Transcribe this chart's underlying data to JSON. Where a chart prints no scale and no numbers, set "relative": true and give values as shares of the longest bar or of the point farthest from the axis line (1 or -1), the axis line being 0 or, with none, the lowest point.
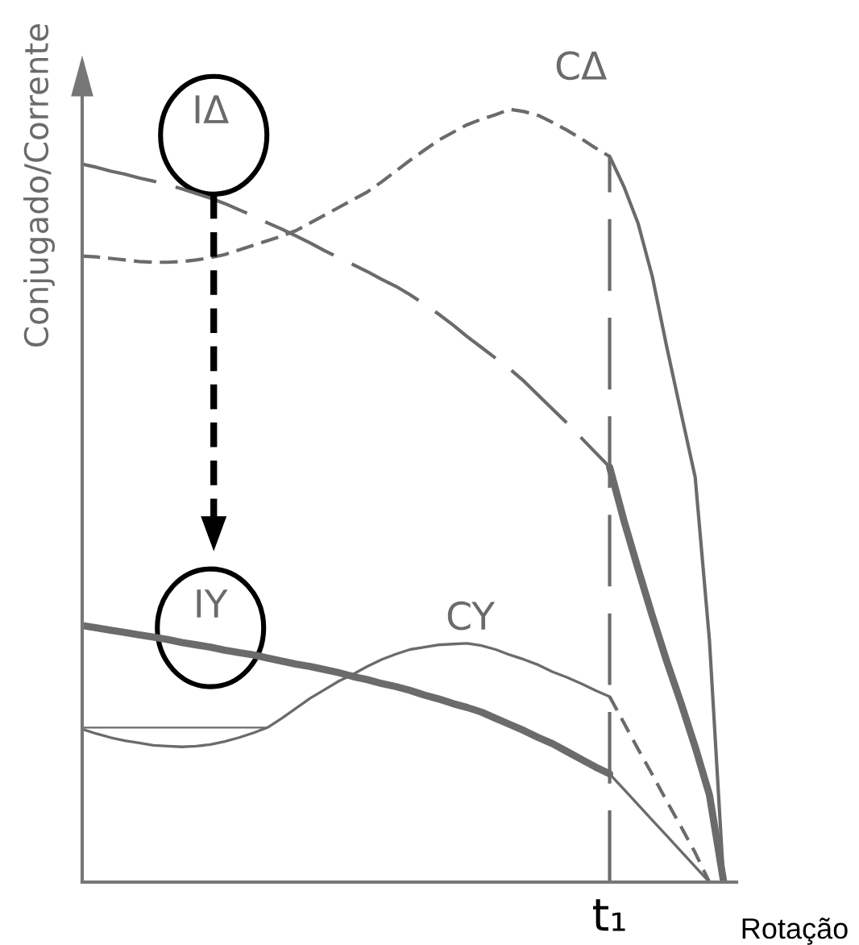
{
  "chart_data": {
    "type": "line",
    "ylabel": "Conjugado/Corrente",
    "xlabel": "Rotação",
    "relative": true,
    "annotations": [
      "t₁"
    ],
    "categories": [
      null,
      null,
      null,
      null,
      null,
      null,
      null,
      null,
      null,
      null,
      null,
      null,
      null,
      null,
      null,
      null,
      null,
      null,
      null,
      null,
      null,
      null,
      null,
      null,
      null,
      null,
      null,
      null,
      null,
      null,
      null,
      null,
      null,
      null,
      null,
      null,
      null,
      null,
      null,
      null,
      null,
      null,
      null,
      null,
      null,
      null
    ],
    "series": [
      {
        "name": "IΔ",
        "color": "#6b6b6b",
        "line_style": "dashed",
        "values": [
          0.929,
          0.925,
          0.92,
          0.916,
          0.911,
          0.907,
          0.902,
          0.897,
          0.891,
          0.885,
          0.878,
          0.87,
          0.862,
          0.853,
          0.845,
          0.836,
          0.827,
          0.817,
          0.808,
          0.799,
          0.79,
          0.78,
          0.771,
          0.76,
          0.748,
          0.735,
          0.721,
          0.706,
          0.692,
          0.678,
          0.664,
          0.648,
          0.63,
          0.612,
          0.594,
          0.575,
          0.556,
          0.537,
          null,
          null,
          null,
          null,
          null,
          null,
          null,
          null
        ]
      },
      {
        "name": "CΔ",
        "color": "#6b6b6b",
        "line_style": "dashed",
        "values": [
          0.81,
          0.809,
          0.807,
          0.805,
          0.803,
          0.802,
          0.802,
          0.803,
          0.805,
          0.808,
          0.812,
          0.818,
          0.824,
          0.83,
          0.836,
          0.843,
          0.853,
          0.863,
          0.873,
          0.883,
          0.893,
          0.906,
          0.92,
          0.934,
          0.947,
          0.96,
          0.97,
          0.98,
          0.987,
          0.993,
          1,
          0.997,
          0.992,
          0.983,
          0.973,
          0.962,
          0.95,
          0.939,
          null,
          null,
          null,
          null,
          null,
          null,
          null,
          null
        ]
      },
      {
        "name": "IY",
        "color": "#6b6b6b",
        "line_style": "solid",
        "values": [
          0.332,
          0.329,
          0.326,
          0.323,
          0.32,
          0.317,
          0.314,
          0.31,
          0.307,
          0.304,
          0.3,
          0.297,
          0.294,
          0.29,
          0.286,
          0.282,
          0.279,
          0.275,
          0.271,
          0.266,
          0.262,
          0.257,
          0.253,
          0.248,
          0.242,
          0.237,
          0.231,
          0.226,
          0.22,
          0.212,
          0.204,
          0.196,
          0.187,
          0.179,
          0.169,
          0.159,
          0.149,
          0.14,
          null,
          null,
          null,
          null,
          null,
          null,
          null,
          null
        ]
      },
      {
        "color": "#6b6b6b",
        "line_style": "solid",
        "values": [
          null,
          null,
          null,
          null,
          null,
          null,
          null,
          null,
          null,
          null,
          null,
          null,
          null,
          null,
          null,
          null,
          null,
          null,
          null,
          null,
          null,
          null,
          null,
          null,
          null,
          null,
          null,
          null,
          null,
          null,
          null,
          null,
          null,
          null,
          null,
          null,
          null,
          0.537,
          0.468,
          0.405,
          0.344,
          0.286,
          0.232,
          0.175,
          0.113,
          0
        ]
      },
      {
        "name": "CY",
        "color": "#6b6b6b",
        "line_style": "solid",
        "values": [
          0.198,
          0.192,
          0.187,
          0.183,
          0.18,
          0.177,
          0.176,
          0.175,
          0.176,
          0.178,
          0.182,
          0.187,
          0.193,
          0.2,
          0.212,
          0.225,
          0.238,
          0.249,
          0.26,
          0.269,
          0.279,
          0.288,
          0.295,
          0.301,
          0.304,
          0.307,
          0.308,
          0.309,
          0.306,
          0.301,
          0.294,
          0.288,
          0.281,
          0.272,
          0.265,
          0.257,
          0.248,
          0.24,
          null,
          null,
          null,
          null,
          null,
          null,
          null,
          null
        ]
      },
      {
        "color": "#6b6b6b",
        "line_style": "solid",
        "values": [
          0.2,
          0.2,
          0.2,
          0.2,
          0.2,
          0.2,
          0.2,
          0.2,
          0.2,
          0.2,
          0.2,
          0.2,
          0.2,
          0.2,
          null,
          null,
          null,
          null,
          null,
          null,
          null,
          null,
          null,
          null,
          null,
          null,
          null,
          null,
          null,
          null,
          null,
          null,
          null,
          null,
          null,
          null,
          null,
          null,
          null,
          null,
          null,
          null,
          null,
          null,
          null,
          null
        ]
      },
      {
        "color": "#6b6b6b",
        "line_style": "solid",
        "values": [
          null,
          null,
          null,
          null,
          null,
          null,
          null,
          null,
          null,
          null,
          null,
          null,
          null,
          null,
          null,
          null,
          null,
          null,
          null,
          null,
          null,
          null,
          null,
          null,
          null,
          null,
          null,
          null,
          null,
          null,
          null,
          null,
          null,
          null,
          null,
          null,
          null,
          0.939,
          0.9,
          0.852,
          0.783,
          0.693,
          0.608,
          0.524,
          0.313,
          0
        ]
      },
      {
        "color": "#6b6b6b",
        "line_style": "solid",
        "values": [
          null,
          null,
          null,
          null,
          null,
          null,
          null,
          null,
          null,
          null,
          null,
          null,
          null,
          null,
          null,
          null,
          null,
          null,
          null,
          null,
          null,
          null,
          null,
          null,
          null,
          null,
          null,
          null,
          null,
          null,
          null,
          null,
          null,
          null,
          null,
          null,
          null,
          0.14,
          0.12,
          0.1,
          0.08,
          0.06,
          0.04,
          0.02,
          0,
          null
        ]
      },
      {
        "color": "#6b6b6b",
        "line_style": "dashed",
        "values": [
          null,
          null,
          null,
          null,
          null,
          null,
          null,
          null,
          null,
          null,
          null,
          null,
          null,
          null,
          null,
          null,
          null,
          null,
          null,
          null,
          null,
          null,
          null,
          null,
          null,
          null,
          null,
          null,
          null,
          null,
          null,
          null,
          null,
          null,
          null,
          null,
          null,
          0.24,
          0.206,
          0.172,
          0.139,
          0.105,
          0.072,
          0.038,
          0,
          null
        ]
      }
    ]
  }
}
